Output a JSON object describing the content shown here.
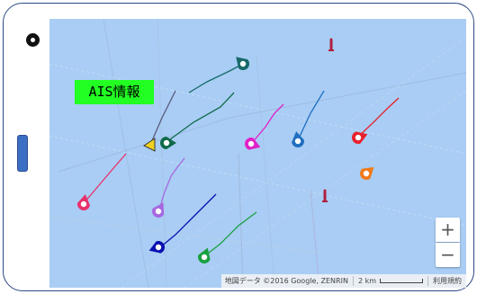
{
  "map": {
    "ais_label": "AIS情報",
    "attribution": "地図データ ©2016 Google, ZENRIN",
    "scale_label": "2 km",
    "terms_label": "利用規約",
    "zoom_in_label": "+",
    "zoom_out_label": "−"
  },
  "colors": {
    "water": "#a9cdf4",
    "ais_label_bg": "#22ff22",
    "device_border": "#2c4a86",
    "home_button": "#3a6fc4"
  },
  "vessels": [
    {
      "name": "vessel-dark-teal-top",
      "color": "#166a6a",
      "icon": "map-pin-icon"
    },
    {
      "name": "vessel-dark-green-left",
      "color": "#0f6a4a",
      "icon": "map-pin-icon"
    },
    {
      "name": "vessel-yellow-triangle",
      "color": "#f0d020",
      "icon": "triangle-marker-icon"
    },
    {
      "name": "vessel-magenta",
      "color": "#e020c8",
      "icon": "map-pin-icon"
    },
    {
      "name": "vessel-blue-center",
      "color": "#1f6fc0",
      "icon": "map-pin-icon"
    },
    {
      "name": "vessel-red",
      "color": "#e8202a",
      "icon": "map-pin-icon"
    },
    {
      "name": "vessel-orange",
      "color": "#f07a1a",
      "icon": "map-pin-icon"
    },
    {
      "name": "vessel-pink",
      "color": "#e8306a",
      "icon": "map-pin-icon"
    },
    {
      "name": "vessel-lavender",
      "color": "#a668e0",
      "icon": "map-pin-icon"
    },
    {
      "name": "vessel-navy",
      "color": "#0a10b0",
      "icon": "map-pin-icon"
    },
    {
      "name": "vessel-green-bottom",
      "color": "#18a040",
      "icon": "map-pin-icon"
    }
  ],
  "landmarks": [
    {
      "name": "lighthouse-top",
      "icon": "lighthouse-icon"
    },
    {
      "name": "lighthouse-bottom",
      "icon": "lighthouse-icon"
    }
  ]
}
